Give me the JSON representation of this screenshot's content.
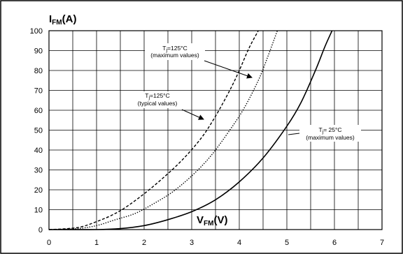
{
  "chart_data": {
    "type": "line",
    "title": "",
    "ylabel": {
      "main": "I",
      "sub": "FM",
      "unit": "(A)"
    },
    "xlabel": {
      "main": "V",
      "sub": "FM",
      "unit": "(V)"
    },
    "xlim": [
      0,
      7
    ],
    "ylim": [
      0,
      100
    ],
    "x_ticks": [
      "0",
      "1",
      "2",
      "3",
      "4",
      "5",
      "6",
      "7"
    ],
    "y_ticks": [
      "0",
      "10",
      "20",
      "30",
      "40",
      "50",
      "60",
      "70",
      "80",
      "90",
      "100"
    ],
    "x_minor_step": 0.5,
    "grid": true,
    "legend": "none",
    "series": [
      {
        "style": "dashed",
        "x": [
          0,
          0.4,
          0.7,
          1.0,
          1.3,
          1.6,
          2.0,
          2.4,
          2.8,
          3.2,
          3.5,
          3.8,
          4.0,
          4.2,
          4.4
        ],
        "values": [
          0,
          0.5,
          1.5,
          4,
          7,
          11,
          18,
          26,
          35,
          46,
          57,
          70,
          80,
          91,
          100
        ]
      },
      {
        "style": "dotted",
        "x": [
          0,
          0.6,
          1.0,
          1.4,
          1.8,
          2.2,
          2.6,
          3.0,
          3.4,
          3.8,
          4.1,
          4.4,
          4.6,
          4.8
        ],
        "values": [
          0,
          0.5,
          2,
          5,
          8,
          13,
          19,
          27,
          37,
          50,
          61,
          75,
          87,
          100
        ]
      },
      {
        "style": "solid",
        "x": [
          0,
          1.0,
          1.5,
          2.0,
          2.5,
          3.0,
          3.5,
          4.0,
          4.5,
          5.0,
          5.3,
          5.6,
          5.8,
          5.95
        ],
        "values": [
          0,
          0,
          0.5,
          2,
          5,
          9,
          15,
          24,
          36,
          52,
          64,
          80,
          92,
          100
        ]
      }
    ],
    "annotations": [
      {
        "prefix": "T",
        "sub": "j",
        "rest": "=125°C",
        "note": "(maximum values)"
      },
      {
        "prefix": "T",
        "sub": "j",
        "rest": "=125°C",
        "note": "(typical values)"
      },
      {
        "prefix": "T",
        "sub": "j",
        "rest": "= 25°C",
        "note": "(maximum values)"
      }
    ]
  }
}
